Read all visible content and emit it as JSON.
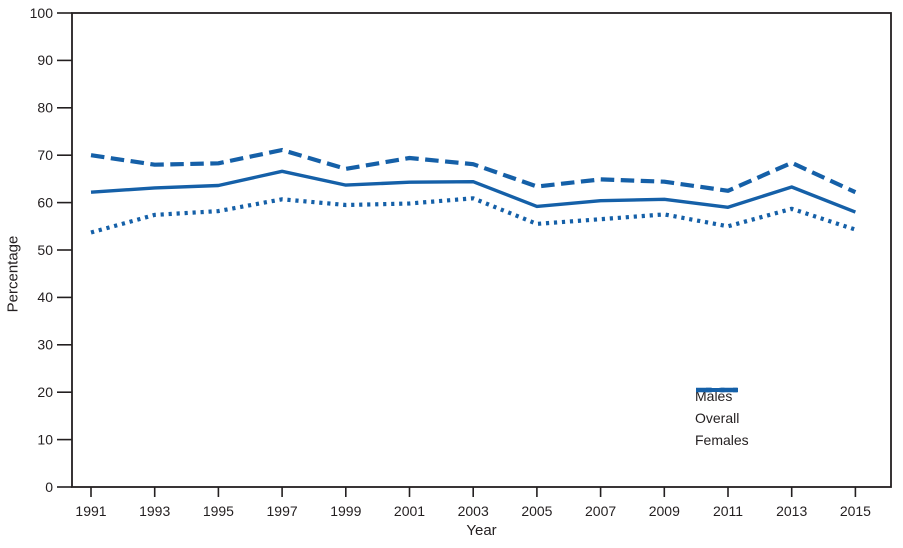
{
  "figure": {
    "background": "#ffffff",
    "frame_color": "#231f20",
    "text_color": "#231f20"
  },
  "chart_data": {
    "type": "line",
    "title": "",
    "xlabel": "Year",
    "ylabel": "Percentage",
    "x": [
      1991,
      1993,
      1995,
      1997,
      1999,
      2001,
      2003,
      2005,
      2007,
      2009,
      2011,
      2013,
      2015
    ],
    "ylim": [
      0,
      100
    ],
    "yticks": [
      0,
      10,
      20,
      30,
      40,
      50,
      60,
      70,
      80,
      90,
      100
    ],
    "grid": false,
    "legend_position": "inside-bottom-right",
    "line_color": "#1560a8",
    "series": [
      {
        "name": "Males",
        "style": "dashed",
        "values": [
          70.0,
          68.0,
          68.3,
          71.1,
          67.1,
          69.4,
          68.1,
          63.4,
          64.9,
          64.4,
          62.5,
          68.4,
          62.2
        ]
      },
      {
        "name": "Overall",
        "style": "solid",
        "values": [
          62.2,
          63.1,
          63.6,
          66.6,
          63.7,
          64.3,
          64.4,
          59.2,
          60.4,
          60.7,
          59.0,
          63.3,
          58.0
        ]
      },
      {
        "name": "Females",
        "style": "dotted",
        "values": [
          53.7,
          57.4,
          58.2,
          60.7,
          59.5,
          59.8,
          60.9,
          55.5,
          56.5,
          57.5,
          55.0,
          58.7,
          54.3
        ]
      }
    ]
  }
}
